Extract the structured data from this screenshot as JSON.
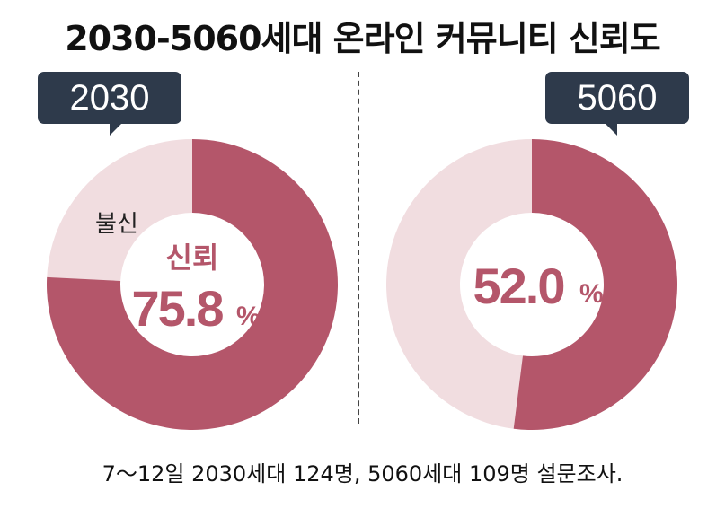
{
  "title": "2030-5060세대 온라인 커뮤니티 신뢰도",
  "footnote": "7～12일 2030세대 124명, 5060세대 109명 설문조사.",
  "colors": {
    "trust": "#b4566a",
    "distrust": "#f1dde0",
    "badge": "#2e3a4b"
  },
  "chart_data": [
    {
      "type": "pie",
      "group": "2030",
      "labels": [
        "신뢰",
        "불신"
      ],
      "values": [
        75.8,
        24.2
      ],
      "center_label": "신뢰",
      "center_value": "75.8",
      "unit": "%",
      "slice_label": "불신"
    },
    {
      "type": "pie",
      "group": "5060",
      "labels": [
        "신뢰",
        "불신"
      ],
      "values": [
        52.0,
        48.0
      ],
      "center_value": "52.0",
      "unit": "%"
    }
  ]
}
